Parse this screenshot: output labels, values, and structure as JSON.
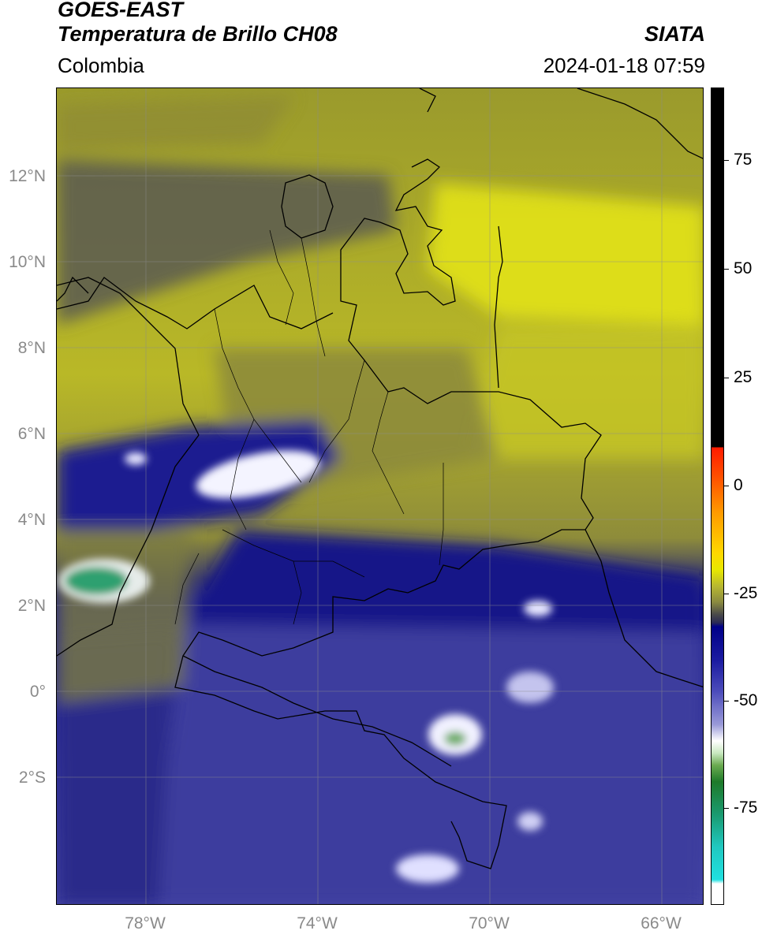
{
  "header": {
    "title_line1": "GOES-EAST",
    "title_line2": "Temperatura de Brillo CH08",
    "agency": "SIATA",
    "region": "Colombia",
    "timestamp": "2024-01-18 07:59"
  },
  "map": {
    "lat_labels": [
      "12°N",
      "10°N",
      "8°N",
      "6°N",
      "4°N",
      "2°N",
      "0°",
      "2°S"
    ],
    "lon_labels": [
      "78°W",
      "74°W",
      "70°W",
      "66°W"
    ],
    "gridline_color": "#8c8c8c",
    "border_color": "#000000"
  },
  "colorbar": {
    "tick_labels": [
      "75",
      "50",
      "25",
      "0",
      "-25",
      "-50",
      "-75"
    ],
    "colors": {
      "warmest": "#000000",
      "red": "#ff1a00",
      "orange": "#ff9a00",
      "yellow": "#e8e800",
      "olive": "#8a8a40",
      "gray": "#4a4a4a",
      "navy": "#000088",
      "lavender": "#9a9ad8",
      "white": "#ffffff",
      "green": "#1e7a2a",
      "cyan": "#20e0e0"
    }
  }
}
